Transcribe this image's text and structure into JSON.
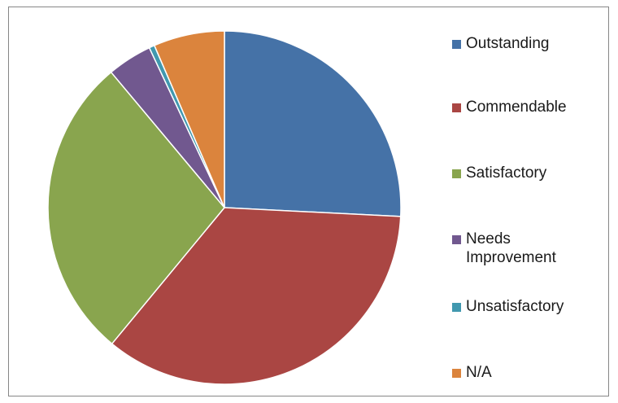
{
  "chart_data": {
    "type": "pie",
    "title": "",
    "categories": [
      "Outstanding",
      "Commendable",
      "Satisfactory",
      "Needs Improvement",
      "Unsatisfactory",
      "N/A"
    ],
    "values": [
      25.8,
      35.2,
      27.9,
      4.1,
      0.5,
      6.5
    ],
    "unit": "",
    "colors": [
      "#4572a7",
      "#aa4643",
      "#89a54e",
      "#71588f",
      "#4198af",
      "#db843d"
    ],
    "start_angle_deg": 0,
    "direction": "clockwise",
    "legend_position": "right",
    "data_labels": false
  }
}
